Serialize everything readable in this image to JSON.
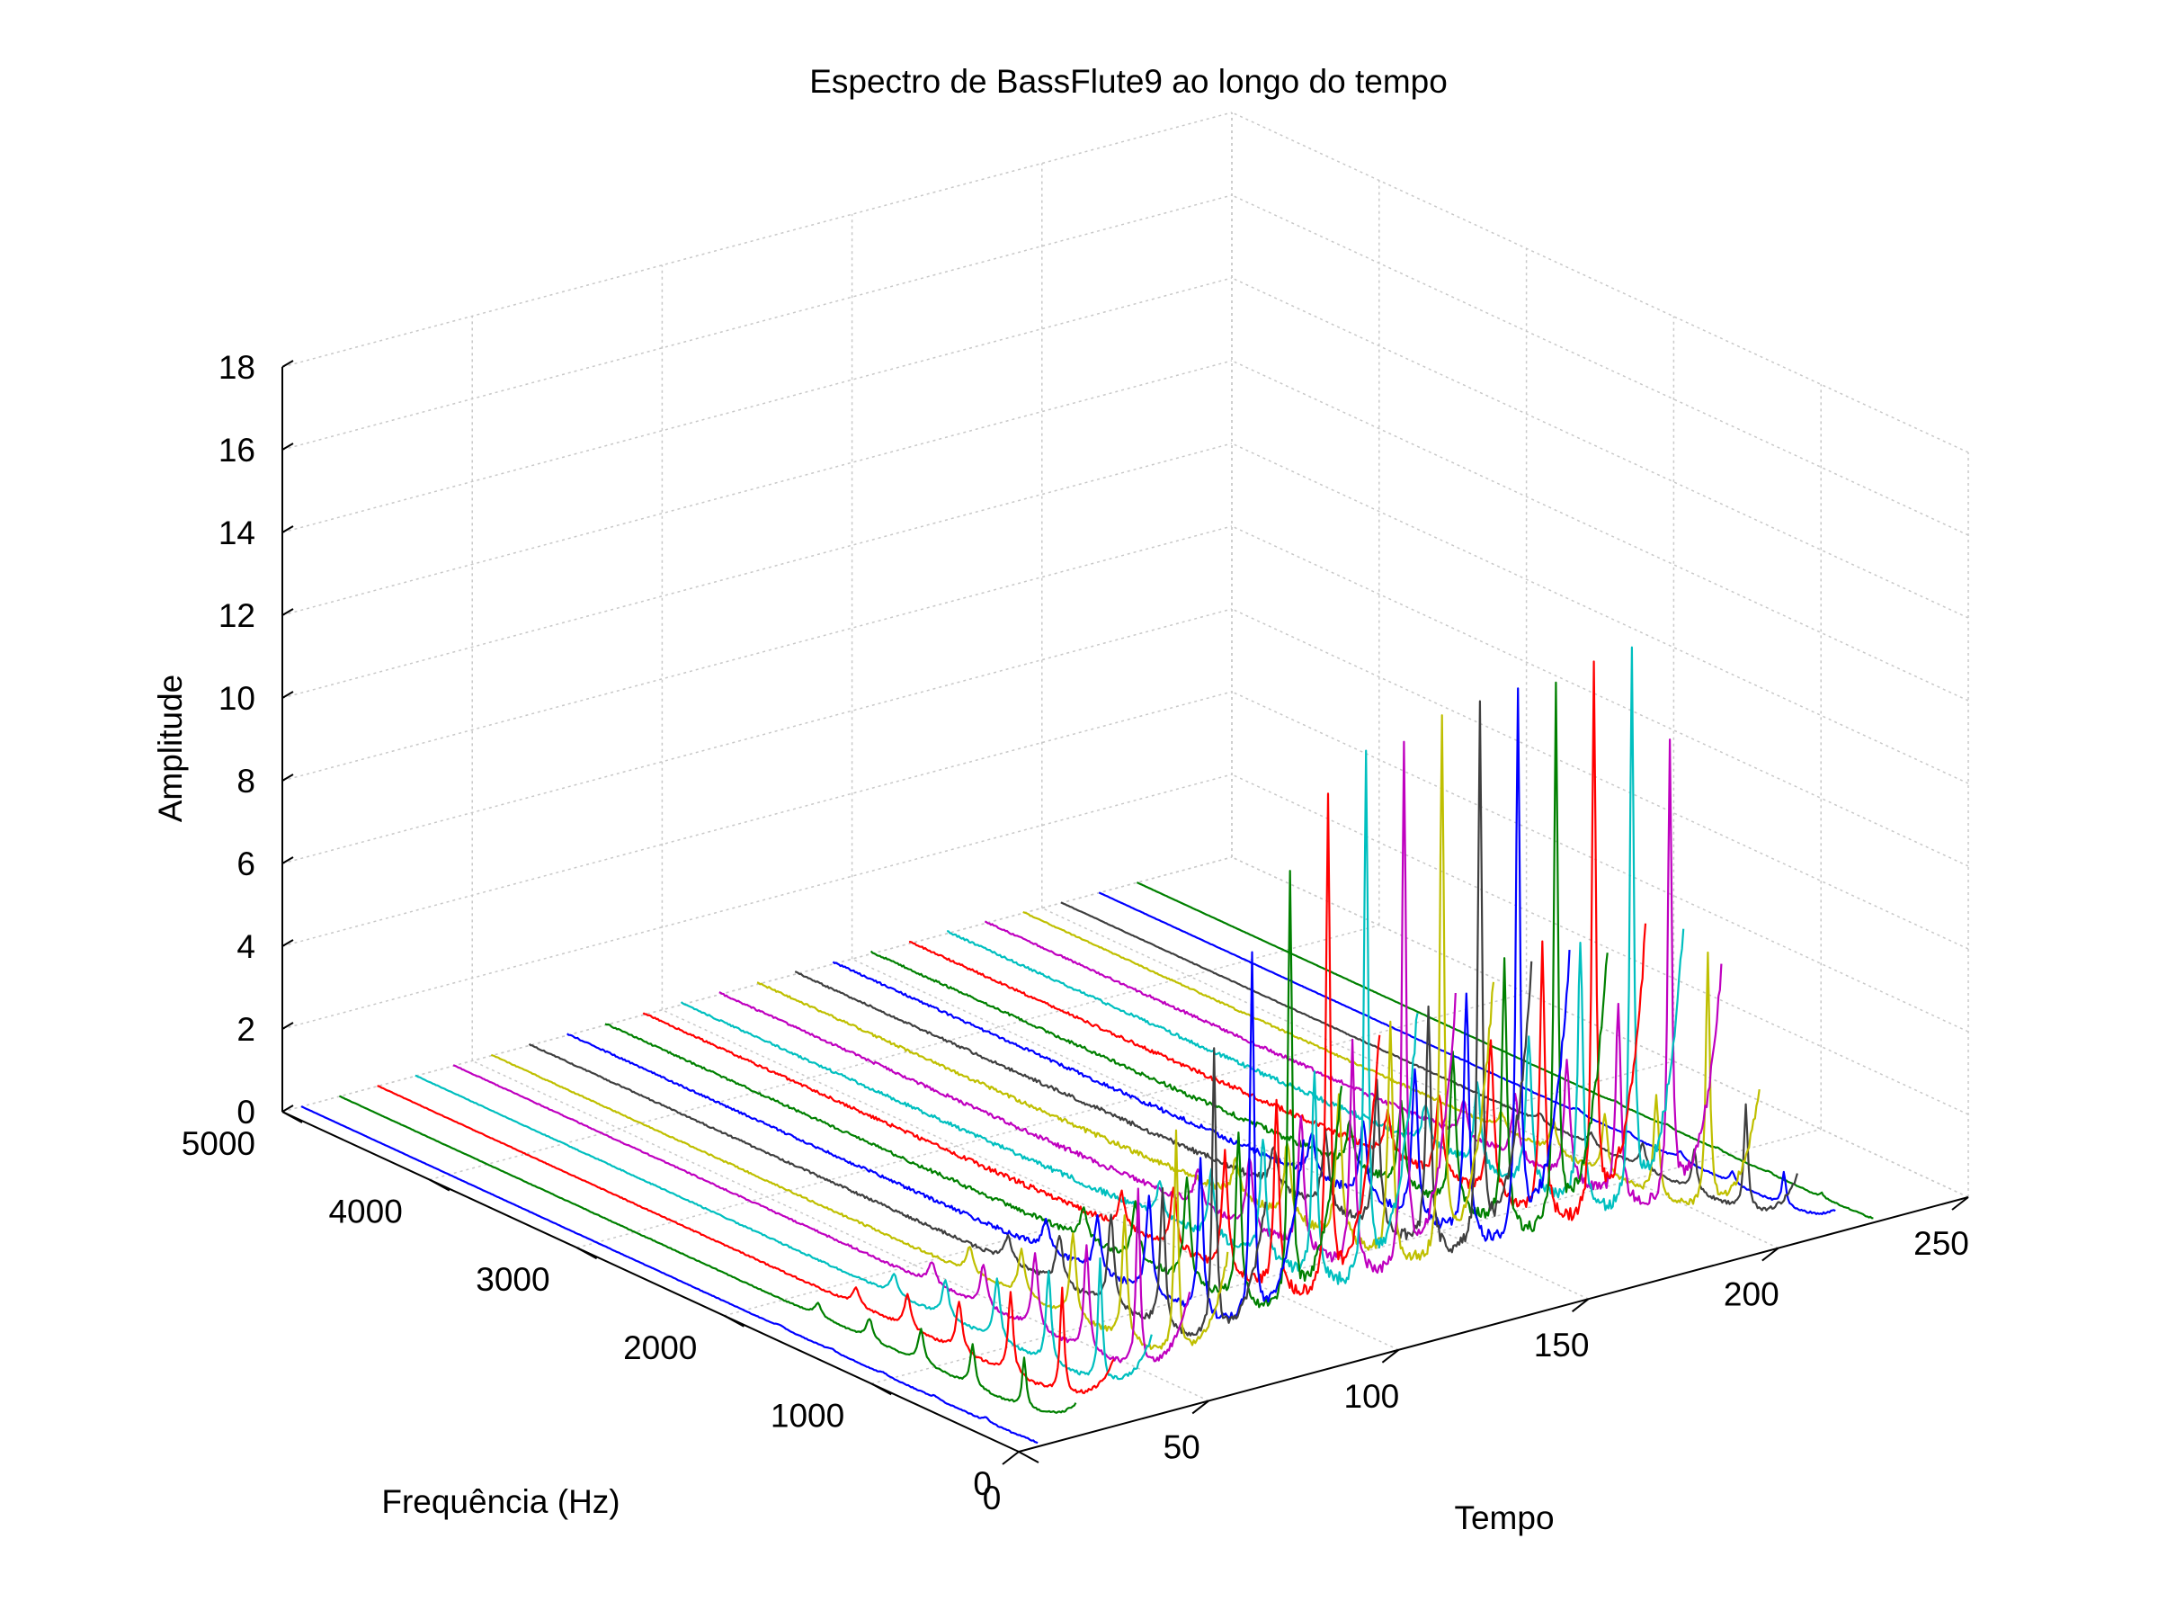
{
  "chart_data": {
    "type": "line",
    "title": "Espectro de BassFlute9 ao longo do tempo",
    "xlabel": "Tempo",
    "ylabel": "Frequência (Hz)",
    "zlabel": "Amplitude",
    "x_ticks": [
      "0",
      "50",
      "100",
      "150",
      "200",
      "250"
    ],
    "y_ticks": [
      "0",
      "1000",
      "2000",
      "3000",
      "4000",
      "5000"
    ],
    "z_ticks": [
      "0",
      "2",
      "4",
      "6",
      "8",
      "10",
      "12",
      "14",
      "16",
      "18"
    ],
    "xlim": [
      0,
      250
    ],
    "ylim": [
      0,
      5000
    ],
    "zlim": [
      0,
      18
    ],
    "grid": true,
    "colors": [
      "#0000ff",
      "#008000",
      "#ff0000",
      "#00bfbf",
      "#bf00bf",
      "#bfbf00",
      "#3f3f3f"
    ],
    "frame_times": [
      5,
      15,
      25,
      35,
      45,
      55,
      65,
      75,
      85,
      95,
      105,
      115,
      125,
      135,
      145,
      155,
      165,
      175,
      185,
      195,
      205,
      215,
      225
    ],
    "harmonic_frequencies": [
      350,
      700,
      1050,
      1400,
      1750
    ],
    "series": [
      {
        "time": 5,
        "harmonic_peaks": [
          0.1,
          0.05,
          0.05,
          0.05,
          0.05
        ]
      },
      {
        "time": 15,
        "harmonic_peaks": [
          1.2,
          1.0,
          0.8,
          0.5,
          0.3
        ]
      },
      {
        "time": 25,
        "harmonic_peaks": [
          2.5,
          2.0,
          1.2,
          0.8,
          0.4
        ]
      },
      {
        "time": 35,
        "harmonic_peaks": [
          3.0,
          2.2,
          1.5,
          0.9,
          0.5
        ]
      },
      {
        "time": 45,
        "harmonic_peaks": [
          4.3,
          2.6,
          1.8,
          1.0,
          0.5
        ]
      },
      {
        "time": 55,
        "harmonic_peaks": [
          5.3,
          3.0,
          2.0,
          1.1,
          0.6
        ]
      },
      {
        "time": 65,
        "harmonic_peaks": [
          7.0,
          3.4,
          2.2,
          1.2,
          0.6
        ]
      },
      {
        "time": 75,
        "harmonic_peaks": [
          9.0,
          3.8,
          2.4,
          1.3,
          0.7
        ]
      },
      {
        "time": 85,
        "harmonic_peaks": [
          10.6,
          4.2,
          2.6,
          1.4,
          0.7
        ]
      },
      {
        "time": 95,
        "harmonic_peaks": [
          12.1,
          4.6,
          2.8,
          1.5,
          0.8
        ]
      },
      {
        "time": 105,
        "harmonic_peaks": [
          12.8,
          5.0,
          3.0,
          1.6,
          0.8
        ]
      },
      {
        "time": 115,
        "harmonic_peaks": [
          12.8,
          5.4,
          3.2,
          1.7,
          0.9
        ]
      },
      {
        "time": 125,
        "harmonic_peaks": [
          13.2,
          5.6,
          3.4,
          1.8,
          0.9
        ]
      },
      {
        "time": 135,
        "harmonic_peaks": [
          13.3,
          5.8,
          3.5,
          1.8,
          0.9
        ]
      },
      {
        "time": 145,
        "harmonic_peaks": [
          13.2,
          6.0,
          3.6,
          1.9,
          1.0
        ]
      },
      {
        "time": 155,
        "harmonic_peaks": [
          13.0,
          6.4,
          3.7,
          2.0,
          1.0
        ]
      },
      {
        "time": 165,
        "harmonic_peaks": [
          13.4,
          6.6,
          3.8,
          2.0,
          1.0
        ]
      },
      {
        "time": 175,
        "harmonic_peaks": [
          13.3,
          6.5,
          3.7,
          2.0,
          1.0
        ]
      },
      {
        "time": 185,
        "harmonic_peaks": [
          11.2,
          4.8,
          2.8,
          1.5,
          0.8
        ]
      },
      {
        "time": 195,
        "harmonic_peaks": [
          6.2,
          2.5,
          1.4,
          0.8,
          0.4
        ]
      },
      {
        "time": 205,
        "harmonic_peaks": [
          2.5,
          1.0,
          0.6,
          0.3,
          0.2
        ]
      },
      {
        "time": 215,
        "harmonic_peaks": [
          0.8,
          0.3,
          0.2,
          0.1,
          0.1
        ]
      },
      {
        "time": 225,
        "harmonic_peaks": [
          0.1,
          0.05,
          0.05,
          0.05,
          0.05
        ]
      }
    ]
  }
}
